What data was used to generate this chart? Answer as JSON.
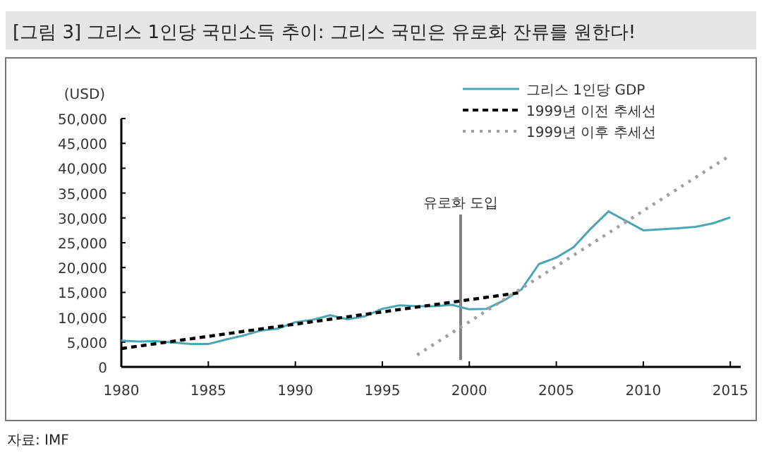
{
  "chart_data": {
    "type": "line",
    "title": "[그림 3] 그리스 1인당 국민소득 추이: 그리스 국민은 유로화 잔류를 원한다!",
    "ylabel": "(USD)",
    "annotations": [
      "자료: IMF"
    ],
    "x": [
      1980,
      1981,
      1982,
      1983,
      1984,
      1985,
      1986,
      1987,
      1988,
      1989,
      1990,
      1991,
      1992,
      1993,
      1994,
      1995,
      1996,
      1997,
      1998,
      1999,
      2000,
      2001,
      2002,
      2003,
      2004,
      2005,
      2006,
      2007,
      2008,
      2009,
      2010,
      2011,
      2012,
      2013,
      2014,
      2015
    ],
    "series": [
      {
        "name": "그리스 1인당 GDP",
        "color": "#4aa5b5",
        "line_style": "solid",
        "values": [
          5300,
          5100,
          5200,
          4900,
          4600,
          4600,
          5500,
          6300,
          7300,
          7700,
          9000,
          9500,
          10400,
          9600,
          10200,
          11700,
          12400,
          12200,
          12200,
          12500,
          11600,
          11700,
          13400,
          15600,
          20700,
          22000,
          24100,
          27900,
          31300,
          29400,
          27500,
          27700,
          27900,
          28200,
          28900,
          30100
        ]
      },
      {
        "name": "1999년 이전 추세선",
        "color": "#000000",
        "line_style": "dashed",
        "x": [
          1980,
          2003
        ],
        "values": [
          3700,
          15000
        ]
      },
      {
        "name": "1999년 이후 추세선",
        "color": "#a0a0a0",
        "line_style": "dotted",
        "x": [
          1997,
          2015
        ],
        "values": [
          2400,
          42600
        ]
      }
    ],
    "xlim": [
      1980,
      2015.6
    ],
    "ylim": [
      0,
      50000
    ],
    "xticks": [
      1980,
      1985,
      1990,
      1995,
      2000,
      2005,
      2010,
      2015
    ],
    "yticks": [
      0,
      {
        "value": 5000,
        "label": "5,000"
      },
      {
        "value": 10000,
        "label": "10,000"
      },
      {
        "value": 15000,
        "label": "15,000"
      },
      {
        "value": 20000,
        "label": "20,000"
      },
      {
        "value": 25000,
        "label": "25,000"
      },
      {
        "value": 30000,
        "label": "30,000"
      },
      {
        "value": 35000,
        "label": "35,000"
      },
      {
        "value": 40000,
        "label": "40,000"
      },
      {
        "value": 45000,
        "label": "45,000"
      },
      {
        "value": 50000,
        "label": "50,000"
      }
    ],
    "ref_lines": [
      {
        "axis": "x",
        "value": 1999.5,
        "label": "유로화 도입",
        "color": "#808080",
        "line_style": "solid"
      }
    ],
    "legend": "top right"
  }
}
